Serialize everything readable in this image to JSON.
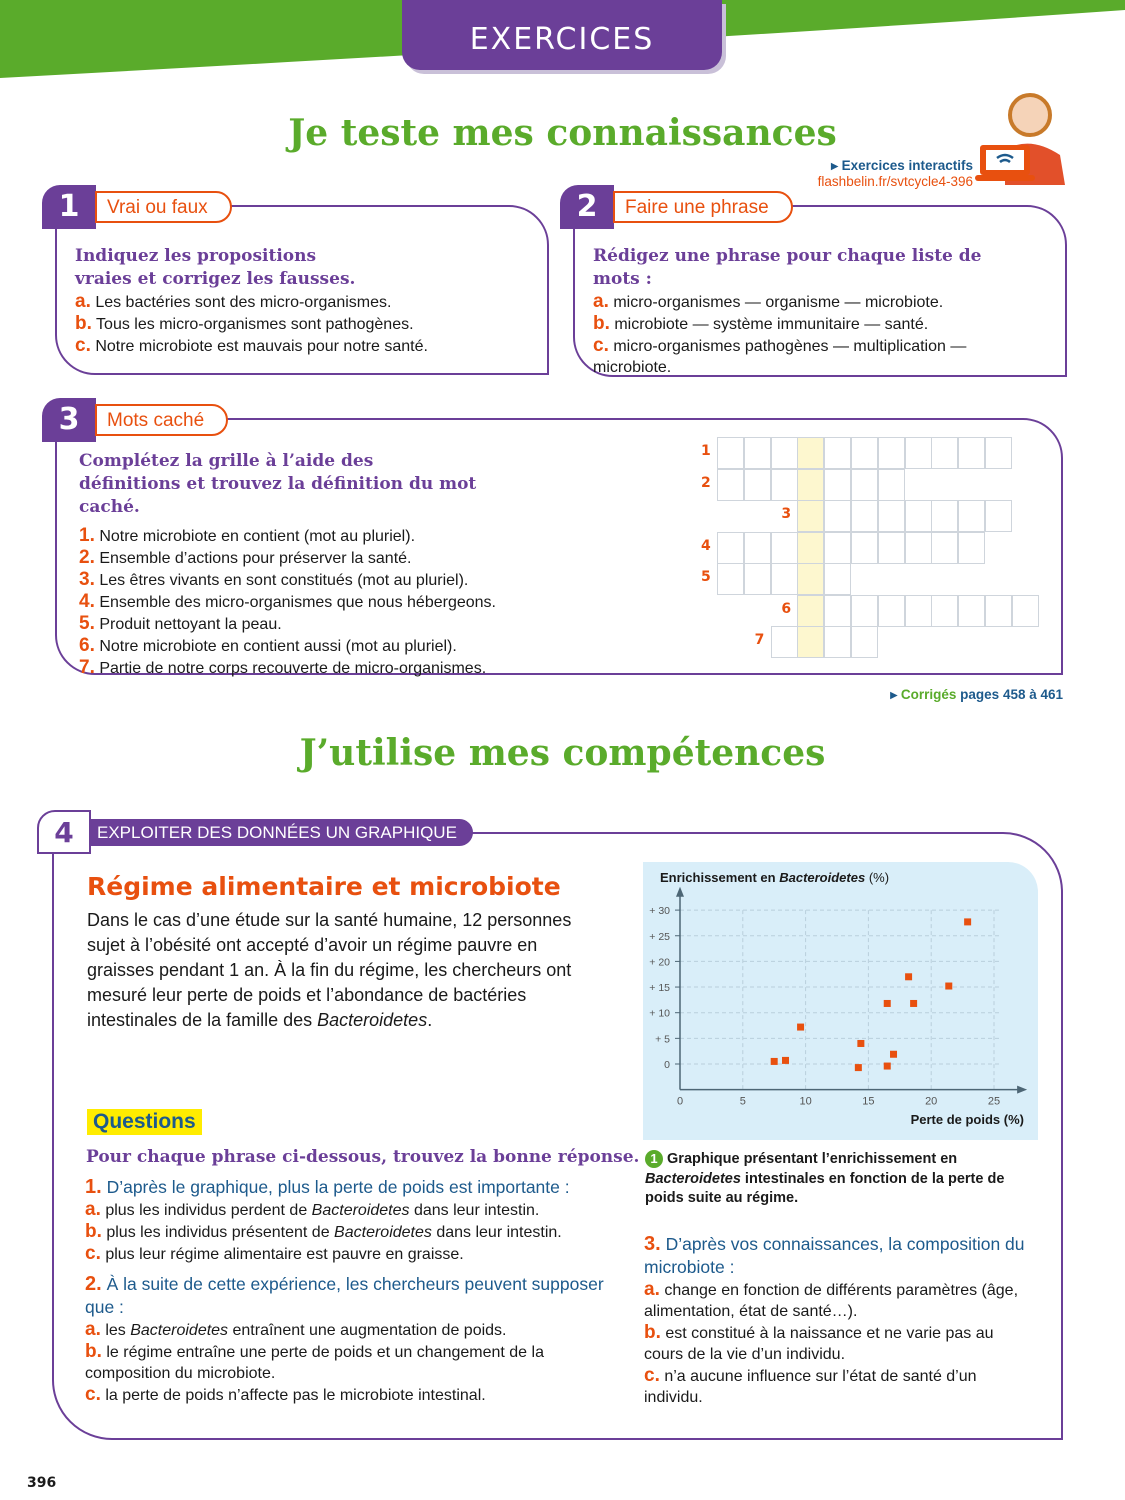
{
  "header": {
    "tab": "EXERCICES"
  },
  "section1": {
    "title": "Je teste mes connaissances"
  },
  "interactive": {
    "label": "Exercices interactifs",
    "link": "flashbelin.fr/svtcycle4-396",
    "icon": "wifi-laptop-icon"
  },
  "ex1": {
    "num": "1",
    "label": "Vrai ou faux",
    "instruction": "Indiquez les propositions vraies et corrigez les fausses.",
    "items": [
      {
        "l": "a.",
        "t": "Les bactéries sont des micro-organismes."
      },
      {
        "l": "b.",
        "t": "Tous les micro-organismes sont pathogènes."
      },
      {
        "l": "c.",
        "t": "Notre microbiote est mauvais pour notre santé."
      }
    ]
  },
  "ex2": {
    "num": "2",
    "label": "Faire une phrase",
    "instruction": "Rédigez une phrase pour chaque liste de mots :",
    "items": [
      {
        "l": "a.",
        "t": "micro-organismes — organisme — microbiote."
      },
      {
        "l": "b.",
        "t": "microbiote — système immunitaire — santé."
      },
      {
        "l": "c.",
        "t": "micro-organismes pathogènes — multiplication — microbiote."
      }
    ]
  },
  "ex3": {
    "num": "3",
    "label": "Mots caché",
    "instruction": "Complétez la grille à l’aide des définitions et trouvez la définition du mot caché.",
    "items": [
      {
        "l": "1.",
        "t": "Notre microbiote en contient (mot au pluriel)."
      },
      {
        "l": "2.",
        "t": "Ensemble d’actions pour préserver la santé."
      },
      {
        "l": "3.",
        "t": "Les êtres vivants en sont constitués (mot au pluriel)."
      },
      {
        "l": "4.",
        "t": "Ensemble des micro-organismes que nous hébergeons."
      },
      {
        "l": "5.",
        "t": "Produit nettoyant la peau."
      },
      {
        "l": "6.",
        "t": "Notre microbiote en contient aussi (mot au pluriel)."
      },
      {
        "l": "7.",
        "t": "Partie de notre corps recouverte de micro-organismes."
      }
    ],
    "grid": {
      "rows": [
        {
          "n": "1",
          "start": 0,
          "len": 11
        },
        {
          "n": "2",
          "start": 0,
          "len": 7
        },
        {
          "n": "3",
          "start": 3,
          "len": 8
        },
        {
          "n": "4",
          "start": 0,
          "len": 10
        },
        {
          "n": "5",
          "start": 0,
          "len": 5
        },
        {
          "n": "6",
          "start": 3,
          "len": 9
        },
        {
          "n": "7",
          "start": 2,
          "len": 4
        }
      ],
      "hidden_col": 3,
      "highlight": "#fdf7cf"
    }
  },
  "corriges": {
    "a": "Corrigés",
    "b": "pages 458 à 461"
  },
  "section2": {
    "title": "J’utilise mes compétences"
  },
  "ex4": {
    "num": "4",
    "label": "EXPLOITER DES DONNÉES UN GRAPHIQUE",
    "title": "Régime alimentaire et microbiote",
    "text_pre": "Dans le cas d’une étude sur la santé humaine, 12 personnes sujet à l’obésité ont accepté d’avoir un régime pauvre en graisses pendant 1 an. À la fin du régime, les chercheurs ont mesuré leur perte de poids et l’abondance de bactéries intestinales de la famille des ",
    "text_em": "Bacteroidetes",
    "text_post": ".",
    "questions_label": "Questions",
    "instruction": "Pour chaque phrase ci-dessous, trouvez la bonne réponse.",
    "q1": {
      "l": "1.",
      "t": "D’après le graphique, plus la perte de poids est importante :",
      "a": [
        {
          "l": "a.",
          "pre": "plus les individus perdent de ",
          "em": "Bacteroidetes",
          "post": " dans leur intestin."
        },
        {
          "l": "b.",
          "pre": "plus les individus présentent de ",
          "em": "Bacteroidetes",
          "post": " dans leur intestin."
        },
        {
          "l": "c.",
          "pre": "plus leur régime alimentaire est pauvre en graisse.",
          "em": "",
          "post": ""
        }
      ]
    },
    "q2": {
      "l": "2.",
      "t": "À la suite de cette expérience, les chercheurs peuvent supposer que :",
      "a": [
        {
          "l": "a.",
          "pre": "les ",
          "em": "Bacteroidetes",
          "post": " entraînent une augmentation de poids."
        },
        {
          "l": "b.",
          "pre": "le régime entraîne une perte de poids et un changement de la composition du microbiote.",
          "em": "",
          "post": ""
        },
        {
          "l": "c.",
          "pre": "la perte de poids n’affecte pas le microbiote intestinal.",
          "em": "",
          "post": ""
        }
      ]
    },
    "q3": {
      "l": "3.",
      "t": "D’après vos connaissances, la composition du microbiote :",
      "a": [
        {
          "l": "a.",
          "pre": "change en fonction de différents paramètres (âge, alimentation, état de santé…).",
          "em": "",
          "post": ""
        },
        {
          "l": "b.",
          "pre": "est constitué à la naissance et ne varie pas au cours de la vie d’un individu.",
          "em": "",
          "post": ""
        },
        {
          "l": "c.",
          "pre": "n’a aucune influence sur l’état de santé d’un individu.",
          "em": "",
          "post": ""
        }
      ]
    },
    "caption": {
      "num": "1",
      "pre": "Graphique présentant l’enrichissement en ",
      "em": "Bacteroidetes",
      "post": " intestinales en fonction de la perte de poids suite au régime."
    }
  },
  "chart_data": {
    "type": "scatter",
    "ylabel_pre": "Enrichissement en ",
    "ylabel_em": "Bacteroidetes",
    "ylabel_post": " (%)",
    "xlabel": "Perte de poids (%)",
    "xlim": [
      0,
      25
    ],
    "ylim": [
      0,
      30
    ],
    "xticks": [
      "0",
      "5",
      "10",
      "15",
      "20",
      "25"
    ],
    "yticks": [
      "0",
      "+ 5",
      "+ 10",
      "+ 15",
      "+ 20",
      "+ 25",
      "+ 30"
    ],
    "grid": true,
    "marker_color": "#e8500f",
    "background": "#d9eef9",
    "points": [
      [
        7.5,
        0.5
      ],
      [
        8.4,
        0.7
      ],
      [
        9.6,
        7.2
      ],
      [
        14.2,
        -0.7
      ],
      [
        14.4,
        4
      ],
      [
        16.5,
        11.8
      ],
      [
        16.5,
        -0.4
      ],
      [
        17,
        1.9
      ],
      [
        18.2,
        17
      ],
      [
        18.6,
        11.8
      ],
      [
        21.4,
        15.2
      ],
      [
        22.9,
        27.7
      ]
    ]
  },
  "page_number": "396"
}
